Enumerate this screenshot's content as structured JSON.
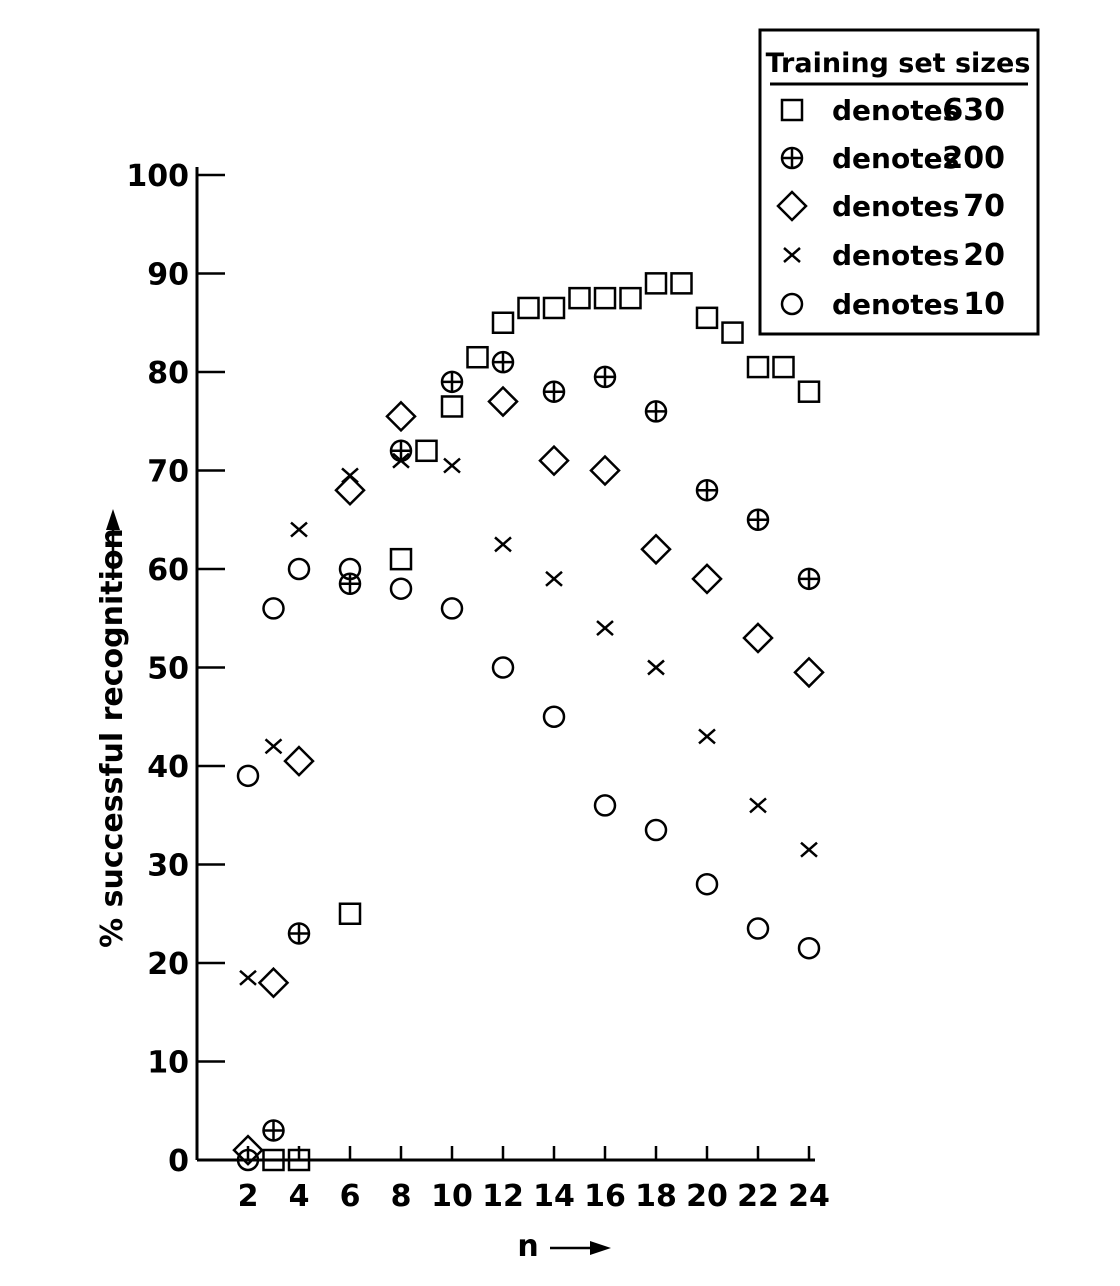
{
  "chart_data": {
    "type": "scatter",
    "ylabel": "% successful recognition",
    "xlabel": "n",
    "xlim": [
      0,
      24
    ],
    "ylim": [
      0,
      100
    ],
    "x_ticks": [
      2,
      4,
      6,
      8,
      10,
      12,
      14,
      16,
      18,
      20,
      22,
      24
    ],
    "y_ticks": [
      0,
      10,
      20,
      30,
      40,
      50,
      60,
      70,
      80,
      90,
      100
    ],
    "grid": false,
    "legend": {
      "title": "Training set sizes",
      "placement": "top-right",
      "entries": [
        {
          "marker": "square",
          "text": "denotes",
          "value": "630"
        },
        {
          "marker": "circle-plus",
          "text": "denotes",
          "value": "200"
        },
        {
          "marker": "diamond",
          "text": "denotes",
          "value": "70"
        },
        {
          "marker": "cross",
          "text": "denotes",
          "value": "20"
        },
        {
          "marker": "circle",
          "text": "denotes",
          "value": "10"
        }
      ]
    },
    "series": [
      {
        "name": "630",
        "marker": "square",
        "points": [
          [
            3,
            0
          ],
          [
            4,
            0
          ],
          [
            6,
            25
          ],
          [
            8,
            61
          ],
          [
            9,
            72
          ],
          [
            10,
            76.5
          ],
          [
            11,
            81.5
          ],
          [
            12,
            85
          ],
          [
            13,
            86.5
          ],
          [
            14,
            86.5
          ],
          [
            15,
            87.5
          ],
          [
            16,
            87.5
          ],
          [
            17,
            87.5
          ],
          [
            18,
            89
          ],
          [
            19,
            89
          ],
          [
            20,
            85.5
          ],
          [
            21,
            84
          ],
          [
            22,
            80.5
          ],
          [
            23,
            80.5
          ],
          [
            24,
            78
          ]
        ]
      },
      {
        "name": "200",
        "marker": "circle-plus",
        "points": [
          [
            3,
            3
          ],
          [
            4,
            23
          ],
          [
            6,
            58.5
          ],
          [
            8,
            72
          ],
          [
            10,
            79
          ],
          [
            12,
            81
          ],
          [
            14,
            78
          ],
          [
            16,
            79.5
          ],
          [
            18,
            76
          ],
          [
            20,
            68
          ],
          [
            22,
            65
          ],
          [
            24,
            59
          ]
        ]
      },
      {
        "name": "70",
        "marker": "diamond",
        "points": [
          [
            2,
            1
          ],
          [
            3,
            18
          ],
          [
            4,
            40.5
          ],
          [
            6,
            68
          ],
          [
            8,
            75.5
          ],
          [
            12,
            77
          ],
          [
            14,
            71
          ],
          [
            16,
            70
          ],
          [
            18,
            62
          ],
          [
            20,
            59
          ],
          [
            22,
            53
          ],
          [
            24,
            49.5
          ]
        ]
      },
      {
        "name": "20",
        "marker": "cross",
        "points": [
          [
            2,
            18.5
          ],
          [
            3,
            42
          ],
          [
            4,
            64
          ],
          [
            6,
            69.5
          ],
          [
            8,
            71
          ],
          [
            10,
            70.5
          ],
          [
            12,
            62.5
          ],
          [
            14,
            59
          ],
          [
            16,
            54
          ],
          [
            18,
            50
          ],
          [
            20,
            43
          ],
          [
            22,
            36
          ],
          [
            24,
            31.5
          ]
        ]
      },
      {
        "name": "10",
        "marker": "circle",
        "points": [
          [
            2,
            0
          ],
          [
            2,
            39
          ],
          [
            3,
            56
          ],
          [
            4,
            60
          ],
          [
            6,
            60
          ],
          [
            8,
            58
          ],
          [
            10,
            56
          ],
          [
            12,
            50
          ],
          [
            14,
            45
          ],
          [
            16,
            36
          ],
          [
            18,
            33.5
          ],
          [
            20,
            28
          ],
          [
            22,
            23.5
          ],
          [
            24,
            21.5
          ]
        ]
      }
    ]
  }
}
